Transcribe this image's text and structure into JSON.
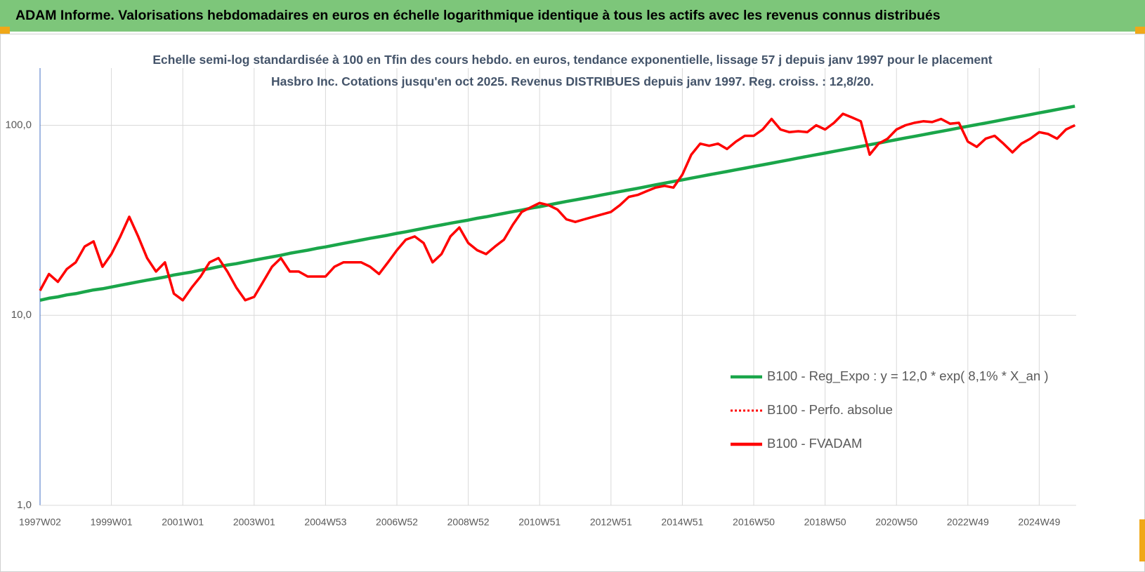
{
  "header_title": "ADAM Informe. Valorisations hebdomadaires en euros en échelle logarithmique identique à tous les actifs avec les revenus connus distribués",
  "chart_data": {
    "type": "line",
    "title": "Echelle semi-log standardisée à 100 en Tfin des cours hebdo. en euros, tendance exponentielle, lissage 57 j depuis janv 1997 pour le placement Hasbro Inc. Cotations jusqu'en oct 2025.  Revenus DISTRIBUES depuis janv 1997. Reg. croiss. : 12,8/20.",
    "categories": [
      "1997W02",
      null,
      null,
      null,
      null,
      null,
      null,
      null,
      "1999W01",
      null,
      null,
      null,
      null,
      null,
      null,
      null,
      "2001W01",
      null,
      null,
      null,
      null,
      null,
      null,
      null,
      "2003W01",
      null,
      null,
      null,
      null,
      null,
      null,
      null,
      "2004W53",
      null,
      null,
      null,
      null,
      null,
      null,
      null,
      "2006W52",
      null,
      null,
      null,
      null,
      null,
      null,
      null,
      "2008W52",
      null,
      null,
      null,
      null,
      null,
      null,
      null,
      "2010W51",
      null,
      null,
      null,
      null,
      null,
      null,
      null,
      "2012W51",
      null,
      null,
      null,
      null,
      null,
      null,
      null,
      "2014W51",
      null,
      null,
      null,
      null,
      null,
      null,
      null,
      "2016W50",
      null,
      null,
      null,
      null,
      null,
      null,
      null,
      "2018W50",
      null,
      null,
      null,
      null,
      null,
      null,
      null,
      "2020W50",
      null,
      null,
      null,
      null,
      null,
      null,
      null,
      "2022W49",
      null,
      null,
      null,
      null,
      null,
      null,
      null,
      "2024W49",
      null,
      null,
      null,
      null
    ],
    "series": [
      {
        "name": "B100 - Reg_Expo : y = 12,0 * exp( 8,1% *  X_an )",
        "color": "#1aa64a",
        "line_style": "solid",
        "values": [
          12.0,
          12.3,
          12.5,
          12.8,
          13.0,
          13.3,
          13.6,
          13.8,
          14.1,
          14.4,
          14.7,
          15.0,
          15.3,
          15.6,
          15.9,
          16.3,
          16.6,
          16.9,
          17.3,
          17.6,
          18.0,
          18.4,
          18.7,
          19.1,
          19.5,
          19.9,
          20.3,
          20.7,
          21.2,
          21.6,
          22.0,
          22.5,
          22.9,
          23.4,
          23.9,
          24.4,
          24.9,
          25.4,
          25.9,
          26.4,
          27.0,
          27.5,
          28.1,
          28.7,
          29.3,
          29.9,
          30.5,
          31.1,
          31.7,
          32.4,
          33.0,
          33.7,
          34.4,
          35.1,
          35.8,
          36.6,
          37.3,
          38.1,
          38.9,
          39.7,
          40.5,
          41.3,
          42.1,
          43.0,
          43.9,
          44.8,
          45.7,
          46.6,
          47.6,
          48.6,
          49.6,
          50.6,
          51.6,
          52.7,
          53.8,
          54.9,
          56.0,
          57.1,
          58.3,
          59.5,
          60.7,
          61.9,
          63.2,
          64.5,
          65.8,
          67.2,
          68.6,
          70.0,
          71.4,
          72.9,
          74.4,
          75.9,
          77.4,
          79.0,
          80.6,
          82.3,
          84.0,
          85.7,
          87.4,
          89.2,
          91.1,
          92.9,
          94.8,
          96.8,
          98.8,
          100.8,
          102.8,
          104.9,
          107.1,
          109.3,
          111.5,
          113.8,
          116.2,
          118.5,
          121.0,
          123.5,
          126.0
        ]
      },
      {
        "name": "B100 - Perfo. absolue",
        "color": "#ff0000",
        "line_style": "dotted",
        "values": [
          13.5,
          16.5,
          15,
          17.5,
          19,
          23,
          24.5,
          18,
          21,
          26,
          33,
          26,
          20,
          17,
          19,
          13,
          12,
          14,
          16,
          19,
          20,
          17,
          14,
          12,
          12.5,
          15,
          18,
          20,
          17,
          17,
          16,
          16,
          16,
          18,
          19,
          19,
          19,
          18,
          16.5,
          19,
          22,
          25,
          26,
          24,
          19,
          21,
          26,
          29,
          24,
          22,
          21,
          23,
          25,
          30,
          35,
          37,
          39,
          38,
          36,
          32,
          31,
          32,
          33,
          34,
          35,
          38,
          42,
          43,
          45,
          47,
          48,
          47,
          55,
          70,
          80,
          78,
          80,
          75,
          82,
          88,
          88,
          95,
          108,
          95,
          92,
          93,
          92,
          100,
          95,
          103,
          115,
          110,
          105,
          70,
          80,
          85,
          95,
          100,
          103,
          105,
          104,
          108,
          102,
          103,
          82,
          77,
          85,
          88,
          80,
          72,
          80,
          85,
          92,
          90,
          85,
          95,
          100
        ]
      },
      {
        "name": "B100 - FVADAM",
        "color": "#ff0000",
        "line_style": "solid",
        "values": [
          13.5,
          16.5,
          15,
          17.5,
          19,
          23,
          24.5,
          18,
          21,
          26,
          33,
          26,
          20,
          17,
          19,
          13,
          12,
          14,
          16,
          19,
          20,
          17,
          14,
          12,
          12.5,
          15,
          18,
          20,
          17,
          17,
          16,
          16,
          16,
          18,
          19,
          19,
          19,
          18,
          16.5,
          19,
          22,
          25,
          26,
          24,
          19,
          21,
          26,
          29,
          24,
          22,
          21,
          23,
          25,
          30,
          35,
          37,
          39,
          38,
          36,
          32,
          31,
          32,
          33,
          34,
          35,
          38,
          42,
          43,
          45,
          47,
          48,
          47,
          55,
          70,
          80,
          78,
          80,
          75,
          82,
          88,
          88,
          95,
          108,
          95,
          92,
          93,
          92,
          100,
          95,
          103,
          115,
          110,
          105,
          70,
          80,
          85,
          95,
          100,
          103,
          105,
          104,
          108,
          102,
          103,
          82,
          77,
          85,
          88,
          80,
          72,
          80,
          85,
          92,
          90,
          85,
          95,
          100
        ]
      }
    ],
    "y_scale": "log",
    "ylim": [
      1,
      200
    ],
    "yticks": [
      {
        "value": 1,
        "label": "1,0"
      },
      {
        "value": 10,
        "label": "10,0"
      },
      {
        "value": 100,
        "label": "100,0"
      }
    ],
    "grid": true,
    "legend": "lower right"
  }
}
